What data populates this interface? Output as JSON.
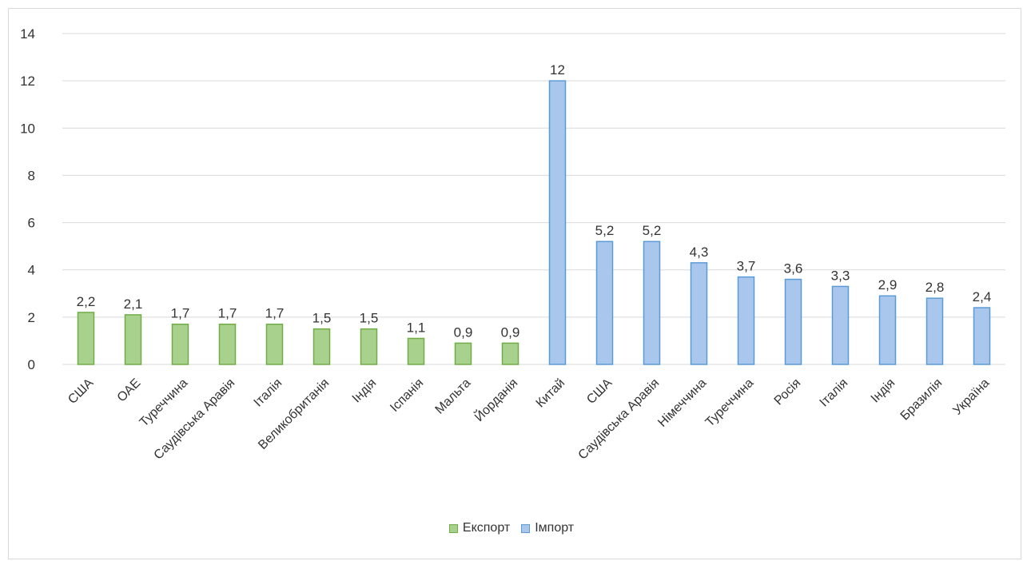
{
  "chart_data": {
    "type": "bar",
    "ylim": [
      0,
      14
    ],
    "yticks": [
      0,
      2,
      4,
      6,
      8,
      10,
      12,
      14
    ],
    "grid": true,
    "legend_position": "bottom",
    "categories": [
      "США",
      "ОАЕ",
      "Туреччина",
      "Саудівська Аравія",
      "Італія",
      "Великобританія",
      "Індія",
      "Іспанія",
      "Мальта",
      "Йорданія",
      "Китай",
      "США",
      "Саудівська Аравія",
      "Німеччина",
      "Туреччина",
      "Росія",
      "Італія",
      "Індія",
      "Бразилія",
      "Україна"
    ],
    "series": [
      {
        "name": "Експорт",
        "color": "#a9d18e",
        "border": "#70ad47",
        "values": [
          2.2,
          2.1,
          1.7,
          1.7,
          1.7,
          1.5,
          1.5,
          1.1,
          0.9,
          0.9,
          null,
          null,
          null,
          null,
          null,
          null,
          null,
          null,
          null,
          null
        ],
        "labels": [
          "2,2",
          "2,1",
          "1,7",
          "1,7",
          "1,7",
          "1,5",
          "1,5",
          "1,1",
          "0,9",
          "0,9",
          null,
          null,
          null,
          null,
          null,
          null,
          null,
          null,
          null,
          null
        ]
      },
      {
        "name": "Імпорт",
        "color": "#a9c7ec",
        "border": "#5b9bd5",
        "values": [
          null,
          null,
          null,
          null,
          null,
          null,
          null,
          null,
          null,
          null,
          12,
          5.2,
          5.2,
          4.3,
          3.7,
          3.6,
          3.3,
          2.9,
          2.8,
          2.4
        ],
        "labels": [
          null,
          null,
          null,
          null,
          null,
          null,
          null,
          null,
          null,
          null,
          "12",
          "5,2",
          "5,2",
          "4,3",
          "3,7",
          "3,6",
          "3,3",
          "2,9",
          "2,8",
          "2,4"
        ]
      }
    ]
  }
}
